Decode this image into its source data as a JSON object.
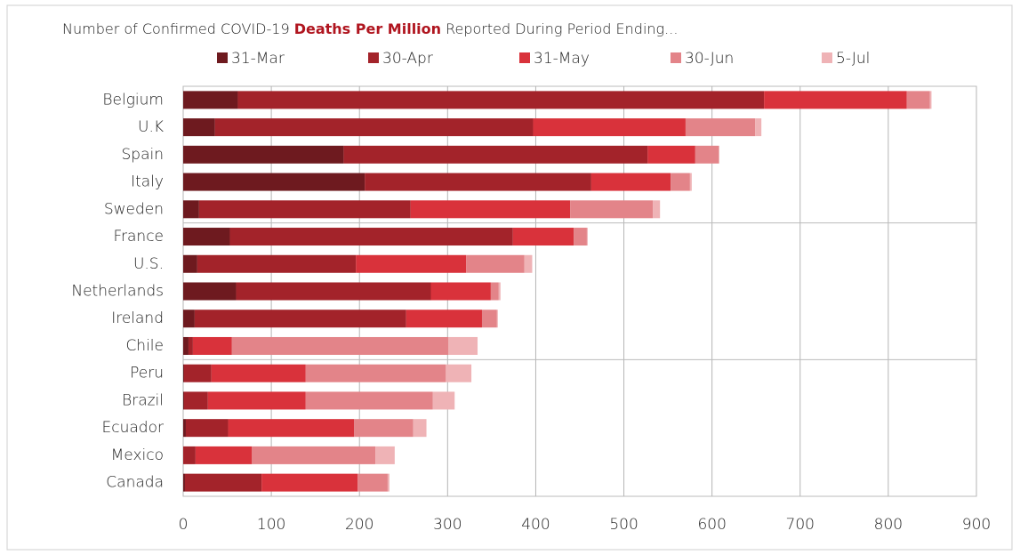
{
  "chart_data": {
    "type": "stacked_barh",
    "title": [
      "Number of Confirmed COVID-19 ",
      "Deaths Per Million",
      " Reported During Period Ending..."
    ],
    "categories": [
      "Belgium",
      "U.K",
      "Spain",
      "Italy",
      "Sweden",
      "France",
      "U.S.",
      "Netherlands",
      "Ireland",
      "Chile",
      "Peru",
      "Brazil",
      "Ecuador",
      "Mexico",
      "Canada"
    ],
    "series": [
      {
        "name": "31-Mar",
        "color": "#6e1a1f",
        "values": [
          62,
          36,
          182,
          206,
          18,
          53,
          16,
          60,
          13,
          6,
          1,
          1,
          3,
          0,
          2
        ]
      },
      {
        "name": "30-Apr",
        "color": "#a3232a",
        "values": [
          597,
          361,
          345,
          257,
          240,
          321,
          180,
          221,
          240,
          5,
          31,
          27,
          48,
          14,
          87
        ]
      },
      {
        "name": "31-May",
        "color": "#d9323b",
        "values": [
          162,
          173,
          54,
          90,
          181,
          69,
          125,
          68,
          86,
          44,
          107,
          111,
          143,
          64,
          109
        ]
      },
      {
        "name": "30-Jun",
        "color": "#e38489",
        "values": [
          26,
          79,
          27,
          22,
          94,
          15,
          66,
          9,
          17,
          246,
          159,
          144,
          67,
          140,
          34
        ]
      },
      {
        "name": "5-Jul",
        "color": "#efb3b6",
        "values": [
          2,
          7,
          0,
          2,
          8,
          1,
          9,
          2,
          1,
          33,
          29,
          25,
          15,
          22,
          2
        ]
      }
    ],
    "xlim": [
      0,
      900
    ],
    "xticks": [
      0,
      100,
      200,
      300,
      400,
      500,
      600,
      700,
      800,
      900
    ],
    "grid": true
  }
}
